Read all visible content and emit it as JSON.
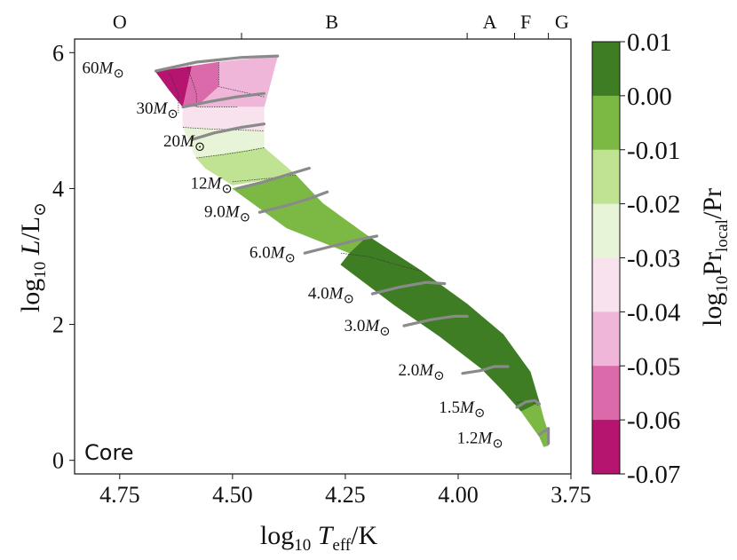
{
  "chart_data": {
    "type": "heatmap",
    "title": "",
    "xlabel": "log10 Teff/K",
    "ylabel": "log10 L/L⊙",
    "xlim": [
      4.85,
      3.75
    ],
    "ylim": [
      -0.2,
      6.2
    ],
    "x_ticks": [
      4.75,
      4.5,
      4.25,
      4.0,
      3.75
    ],
    "x_tick_labels": [
      "4.75",
      "4.50",
      "4.25",
      "4.00",
      "3.75"
    ],
    "y_ticks": [
      0,
      2,
      4,
      6
    ],
    "y_tick_labels": [
      "0",
      "2",
      "4",
      "6"
    ],
    "panel_label": "Core",
    "spectral_types": [
      {
        "label": "O",
        "teff": 4.75
      },
      {
        "label": "B",
        "teff": 4.28
      },
      {
        "label": "A",
        "teff": 3.93
      },
      {
        "label": "F",
        "teff": 3.85
      },
      {
        "label": "G",
        "teff": 3.77
      }
    ],
    "spectral_boundaries": [
      4.48,
      3.98,
      3.875,
      3.8
    ],
    "colorbar": {
      "label": "log10 Pr_local/Pr",
      "tick_labels": [
        "0.01",
        "0.00",
        "-0.01",
        "-0.02",
        "-0.03",
        "-0.04",
        "-0.05",
        "-0.06",
        "-0.07"
      ],
      "levels": [
        {
          "min": 0.0,
          "max": 0.01,
          "color": "#3e7d23"
        },
        {
          "min": -0.01,
          "max": 0.0,
          "color": "#7cb844"
        },
        {
          "min": -0.02,
          "max": -0.01,
          "color": "#bfe393"
        },
        {
          "min": -0.03,
          "max": -0.02,
          "color": "#e8f4d8"
        },
        {
          "min": -0.04,
          "max": -0.03,
          "color": "#f8e2ee"
        },
        {
          "min": -0.05,
          "max": -0.04,
          "color": "#f0b6da"
        },
        {
          "min": -0.06,
          "max": -0.05,
          "color": "#da6aaa"
        },
        {
          "min": -0.07,
          "max": -0.06,
          "color": "#b5156f"
        }
      ]
    },
    "zams_edge": [
      [
        4.67,
        5.72
      ],
      [
        4.61,
        4.9
      ],
      [
        4.56,
        4.3
      ],
      [
        4.5,
        4.0
      ],
      [
        4.38,
        3.42
      ],
      [
        4.26,
        2.88
      ],
      [
        4.14,
        2.28
      ],
      [
        4.04,
        1.82
      ],
      [
        3.95,
        1.36
      ],
      [
        3.9,
        1.02
      ],
      [
        3.86,
        0.72
      ],
      [
        3.82,
        0.35
      ],
      [
        3.81,
        0.2
      ]
    ],
    "tams_edge": [
      [
        4.4,
        5.95
      ],
      [
        4.43,
        5.2
      ],
      [
        4.43,
        4.6
      ],
      [
        4.36,
        4.2
      ],
      [
        4.3,
        3.78
      ],
      [
        4.2,
        3.3
      ],
      [
        4.08,
        2.78
      ],
      [
        3.98,
        2.3
      ],
      [
        3.9,
        1.85
      ],
      [
        3.84,
        1.3
      ],
      [
        3.82,
        0.75
      ],
      [
        3.8,
        0.4
      ],
      [
        3.8,
        0.22
      ]
    ],
    "color_regions": [
      {
        "level": -0.065,
        "polygon": [
          [
            4.67,
            5.72
          ],
          [
            4.59,
            5.8
          ],
          [
            4.61,
            5.2
          ],
          [
            4.64,
            5.45
          ]
        ]
      },
      {
        "level": -0.055,
        "polygon": [
          [
            4.59,
            5.8
          ],
          [
            4.53,
            5.86
          ],
          [
            4.53,
            5.5
          ],
          [
            4.58,
            5.2
          ],
          [
            4.61,
            5.2
          ]
        ]
      },
      {
        "level": -0.045,
        "polygon": [
          [
            4.53,
            5.86
          ],
          [
            4.4,
            5.95
          ],
          [
            4.43,
            5.2
          ],
          [
            4.58,
            5.2
          ],
          [
            4.53,
            5.5
          ]
        ]
      },
      {
        "level": -0.035,
        "polygon": [
          [
            4.43,
            5.2
          ],
          [
            4.43,
            4.85
          ],
          [
            4.61,
            4.9
          ],
          [
            4.61,
            5.2
          ]
        ]
      },
      {
        "level": -0.025,
        "polygon": [
          [
            4.61,
            4.9
          ],
          [
            4.43,
            4.85
          ],
          [
            4.43,
            4.6
          ],
          [
            4.58,
            4.45
          ]
        ]
      },
      {
        "level": -0.015,
        "polygon": [
          [
            4.58,
            4.45
          ],
          [
            4.43,
            4.6
          ],
          [
            4.36,
            4.2
          ],
          [
            4.5,
            4.05
          ],
          [
            4.56,
            4.3
          ]
        ]
      },
      {
        "level": -0.005,
        "polygon": [
          [
            4.5,
            4.0
          ],
          [
            4.36,
            4.2
          ],
          [
            4.3,
            3.78
          ],
          [
            4.2,
            3.3
          ],
          [
            4.24,
            3.05
          ],
          [
            4.38,
            3.42
          ]
        ]
      },
      {
        "level": 0.005,
        "polygon": [
          [
            4.24,
            3.05
          ],
          [
            4.2,
            3.3
          ],
          [
            4.08,
            2.78
          ],
          [
            3.98,
            2.3
          ],
          [
            3.9,
            1.85
          ],
          [
            3.84,
            1.3
          ],
          [
            3.82,
            0.85
          ],
          [
            3.86,
            0.72
          ],
          [
            3.9,
            1.02
          ],
          [
            3.95,
            1.36
          ],
          [
            4.04,
            1.82
          ],
          [
            4.14,
            2.28
          ],
          [
            4.26,
            2.88
          ]
        ]
      },
      {
        "level": -0.005,
        "polygon": [
          [
            3.86,
            0.72
          ],
          [
            3.82,
            0.85
          ],
          [
            3.81,
            0.6
          ],
          [
            3.8,
            0.4
          ],
          [
            3.8,
            0.22
          ],
          [
            3.81,
            0.2
          ],
          [
            3.82,
            0.35
          ]
        ]
      }
    ],
    "contour_lines": [
      [
        [
          4.64,
          5.7
        ],
        [
          4.62,
          5.4
        ],
        [
          4.62,
          5.1
        ]
      ],
      [
        [
          4.6,
          5.8
        ],
        [
          4.58,
          5.4
        ],
        [
          4.58,
          5.2
        ],
        [
          4.49,
          5.2
        ]
      ],
      [
        [
          4.53,
          5.86
        ],
        [
          4.53,
          5.5
        ],
        [
          4.43,
          5.35
        ]
      ],
      [
        [
          4.61,
          4.9
        ],
        [
          4.56,
          4.88
        ],
        [
          4.48,
          4.86
        ],
        [
          4.43,
          4.85
        ]
      ],
      [
        [
          4.58,
          4.45
        ],
        [
          4.52,
          4.5
        ],
        [
          4.47,
          4.55
        ],
        [
          4.43,
          4.6
        ]
      ],
      [
        [
          4.5,
          4.1
        ],
        [
          4.42,
          4.15
        ],
        [
          4.36,
          4.2
        ]
      ],
      [
        [
          4.26,
          3.05
        ],
        [
          4.2,
          3.0
        ],
        [
          4.12,
          2.85
        ],
        [
          4.08,
          2.78
        ]
      ],
      [
        [
          3.87,
          0.85
        ],
        [
          3.84,
          0.88
        ],
        [
          3.82,
          0.8
        ]
      ]
    ],
    "tracks": [
      {
        "mass": "60M⊙",
        "label_pos": [
          4.74,
          5.7
        ],
        "points": [
          [
            4.67,
            5.73
          ],
          [
            4.58,
            5.86
          ],
          [
            4.48,
            5.93
          ],
          [
            4.4,
            5.95
          ]
        ]
      },
      {
        "mass": "30M⊙",
        "label_pos": [
          4.62,
          5.1
        ],
        "points": [
          [
            4.61,
            5.2
          ],
          [
            4.55,
            5.28
          ],
          [
            4.49,
            5.35
          ],
          [
            4.43,
            5.4
          ]
        ]
      },
      {
        "mass": "20M⊙",
        "label_pos": [
          4.56,
          4.62
        ],
        "points": [
          [
            4.59,
            4.72
          ],
          [
            4.54,
            4.82
          ],
          [
            4.48,
            4.9
          ],
          [
            4.43,
            4.95
          ]
        ]
      },
      {
        "mass": "12M⊙",
        "label_pos": [
          4.5,
          4.0
        ],
        "points": [
          [
            4.49,
            4.0
          ],
          [
            4.43,
            4.1
          ],
          [
            4.38,
            4.2
          ],
          [
            4.33,
            4.3
          ]
        ]
      },
      {
        "mass": "9.0M⊙",
        "label_pos": [
          4.46,
          3.58
        ],
        "points": [
          [
            4.44,
            3.65
          ],
          [
            4.38,
            3.75
          ],
          [
            4.33,
            3.85
          ],
          [
            4.29,
            3.95
          ]
        ]
      },
      {
        "mass": "6.0M⊙",
        "label_pos": [
          4.36,
          2.98
        ],
        "points": [
          [
            4.34,
            3.05
          ],
          [
            4.28,
            3.15
          ],
          [
            4.22,
            3.25
          ],
          [
            4.18,
            3.3
          ]
        ]
      },
      {
        "mass": "4.0M⊙",
        "label_pos": [
          4.23,
          2.38
        ],
        "points": [
          [
            4.19,
            2.45
          ],
          [
            4.13,
            2.55
          ],
          [
            4.07,
            2.62
          ],
          [
            4.03,
            2.6
          ]
        ]
      },
      {
        "mass": "3.0M⊙",
        "label_pos": [
          4.15,
          1.9
        ],
        "points": [
          [
            4.12,
            1.98
          ],
          [
            4.06,
            2.07
          ],
          [
            4.01,
            2.12
          ],
          [
            3.98,
            2.12
          ]
        ]
      },
      {
        "mass": "2.0M⊙",
        "label_pos": [
          4.03,
          1.25
        ],
        "points": [
          [
            3.99,
            1.28
          ],
          [
            3.95,
            1.32
          ],
          [
            3.92,
            1.38
          ],
          [
            3.89,
            1.38
          ]
        ]
      },
      {
        "mass": "1.5M⊙",
        "label_pos": [
          3.94,
          0.7
        ],
        "points": [
          [
            3.87,
            0.78
          ],
          [
            3.85,
            0.86
          ],
          [
            3.83,
            0.88
          ],
          [
            3.82,
            0.83
          ]
        ]
      },
      {
        "mass": "1.2M⊙",
        "label_pos": [
          3.9,
          0.25
        ],
        "points": [
          [
            3.82,
            0.38
          ],
          [
            3.8,
            0.47
          ],
          [
            3.8,
            0.25
          ]
        ]
      }
    ]
  }
}
